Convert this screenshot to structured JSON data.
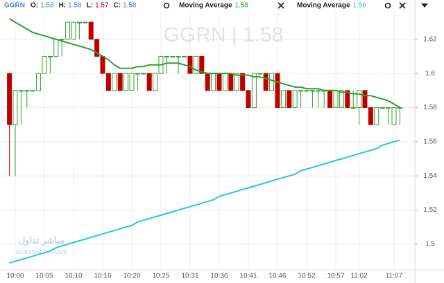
{
  "chart_data": {
    "type": "candlestick",
    "header": {
      "symbol": "GGRN",
      "fields": [
        {
          "label": "O:",
          "value": 1.58
        },
        {
          "label": "H:",
          "value": 1.58
        },
        {
          "label": "L:",
          "value": 1.57
        },
        {
          "label": "C:",
          "value": 1.58
        }
      ]
    },
    "watermark": "GGRN  |  1.58",
    "logo": [
      "مباشر تداول",
      "MUBASHER TRADE"
    ],
    "categories": [
      null,
      "10:00",
      null,
      null,
      null,
      null,
      "10:05",
      null,
      null,
      null,
      null,
      "10:10",
      null,
      null,
      null,
      null,
      "10:16",
      null,
      null,
      null,
      null,
      "10:20",
      null,
      null,
      null,
      null,
      "10:25",
      null,
      null,
      null,
      null,
      "10:31",
      null,
      null,
      null,
      null,
      "10:36",
      null,
      null,
      null,
      null,
      "10:41",
      null,
      null,
      null,
      null,
      "10:46",
      null,
      null,
      null,
      null,
      "10:52",
      null,
      null,
      null,
      null,
      "10:57",
      null,
      null,
      null,
      "11:02",
      null,
      null,
      null,
      null,
      null,
      "11:07",
      null
    ],
    "open": [
      1.6,
      1.57,
      1.59,
      1.59,
      1.59,
      1.59,
      1.6,
      1.61,
      1.61,
      1.62,
      1.62,
      1.62,
      1.63,
      1.63,
      1.63,
      1.62,
      1.61,
      1.6,
      1.59,
      1.6,
      1.59,
      1.59,
      1.6,
      1.6,
      1.6,
      1.59,
      1.6,
      1.61,
      1.61,
      1.61,
      1.61,
      1.61,
      1.6,
      1.61,
      1.6,
      1.59,
      1.6,
      1.59,
      1.6,
      1.59,
      1.6,
      1.59,
      1.58,
      1.6,
      1.6,
      1.59,
      1.6,
      1.58,
      1.59,
      1.58,
      1.59,
      1.59,
      1.59,
      1.59,
      1.59,
      1.59,
      1.58,
      1.58,
      1.59,
      1.58,
      1.58,
      1.59,
      1.58,
      1.57,
      1.58,
      1.58,
      1.57,
      1.58
    ],
    "high": [
      1.6,
      1.59,
      1.59,
      1.59,
      1.59,
      1.6,
      1.61,
      1.61,
      1.62,
      1.62,
      1.63,
      1.63,
      1.63,
      1.63,
      1.63,
      1.62,
      1.61,
      1.6,
      1.6,
      1.6,
      1.6,
      1.6,
      1.6,
      1.6,
      1.6,
      1.6,
      1.61,
      1.61,
      1.61,
      1.61,
      1.61,
      1.61,
      1.61,
      1.61,
      1.6,
      1.6,
      1.6,
      1.6,
      1.6,
      1.6,
      1.6,
      1.59,
      1.6,
      1.6,
      1.6,
      1.6,
      1.6,
      1.59,
      1.59,
      1.59,
      1.59,
      1.59,
      1.59,
      1.59,
      1.59,
      1.59,
      1.59,
      1.59,
      1.59,
      1.59,
      1.59,
      1.59,
      1.58,
      1.58,
      1.58,
      1.58,
      1.58,
      1.58
    ],
    "low": [
      1.54,
      1.54,
      1.57,
      1.58,
      1.59,
      1.59,
      1.6,
      1.6,
      1.61,
      1.61,
      1.62,
      1.62,
      1.62,
      1.63,
      1.62,
      1.61,
      1.6,
      1.59,
      1.59,
      1.59,
      1.59,
      1.59,
      1.59,
      1.6,
      1.59,
      1.59,
      1.6,
      1.6,
      1.61,
      1.6,
      1.61,
      1.6,
      1.6,
      1.6,
      1.59,
      1.59,
      1.59,
      1.59,
      1.59,
      1.59,
      1.59,
      1.58,
      1.58,
      1.6,
      1.59,
      1.59,
      1.58,
      1.58,
      1.58,
      1.58,
      1.58,
      1.59,
      1.58,
      1.58,
      1.58,
      1.58,
      1.58,
      1.58,
      1.58,
      1.58,
      1.57,
      1.58,
      1.57,
      1.57,
      1.58,
      1.57,
      1.57,
      1.57
    ],
    "close": [
      1.57,
      1.59,
      1.59,
      1.59,
      1.59,
      1.6,
      1.61,
      1.61,
      1.62,
      1.62,
      1.63,
      1.63,
      1.63,
      1.63,
      1.62,
      1.61,
      1.6,
      1.59,
      1.6,
      1.59,
      1.6,
      1.6,
      1.6,
      1.6,
      1.59,
      1.6,
      1.61,
      1.61,
      1.61,
      1.61,
      1.61,
      1.6,
      1.61,
      1.6,
      1.59,
      1.6,
      1.59,
      1.6,
      1.59,
      1.6,
      1.59,
      1.58,
      1.6,
      1.6,
      1.59,
      1.6,
      1.58,
      1.59,
      1.58,
      1.59,
      1.59,
      1.59,
      1.59,
      1.59,
      1.59,
      1.58,
      1.59,
      1.59,
      1.58,
      1.58,
      1.59,
      1.58,
      1.57,
      1.58,
      1.58,
      1.58,
      1.58,
      1.58
    ],
    "up_color": "#2ca02c",
    "down_color": "#c00000",
    "series": [
      {
        "name": "Moving Average",
        "current": 1.58,
        "color": "#2ca02c",
        "values": [
          1.632,
          1.63,
          1.628,
          1.626,
          1.624,
          1.623,
          1.622,
          1.621,
          1.62,
          1.619,
          1.618,
          1.617,
          1.616,
          1.615,
          1.614,
          1.612,
          1.61,
          1.608,
          1.605,
          1.603,
          1.603,
          1.603,
          1.604,
          1.604,
          1.605,
          1.605,
          1.605,
          1.606,
          1.606,
          1.606,
          1.605,
          1.604,
          1.602,
          1.601,
          1.6,
          1.6,
          1.6,
          1.6,
          1.6,
          1.599,
          1.599,
          1.599,
          1.598,
          1.598,
          1.597,
          1.596,
          1.595,
          1.594,
          1.593,
          1.592,
          1.592,
          1.591,
          1.591,
          1.591,
          1.59,
          1.59,
          1.59,
          1.589,
          1.589,
          1.588,
          1.588,
          1.587,
          1.587,
          1.586,
          1.585,
          1.584,
          1.582,
          1.58
        ]
      },
      {
        "name": "Moving Average",
        "current": 1.56,
        "color": "#26c6da",
        "values": [
          1.489,
          1.49,
          1.491,
          1.492,
          1.493,
          1.494,
          1.495,
          1.496,
          1.498,
          1.499,
          1.5,
          1.501,
          1.502,
          1.503,
          1.504,
          1.505,
          1.506,
          1.507,
          1.508,
          1.509,
          1.51,
          1.511,
          1.513,
          1.514,
          1.515,
          1.516,
          1.517,
          1.518,
          1.519,
          1.52,
          1.521,
          1.522,
          1.523,
          1.524,
          1.525,
          1.526,
          1.528,
          1.529,
          1.53,
          1.531,
          1.532,
          1.533,
          1.534,
          1.535,
          1.536,
          1.537,
          1.538,
          1.539,
          1.54,
          1.541,
          1.543,
          1.544,
          1.545,
          1.546,
          1.547,
          1.548,
          1.549,
          1.55,
          1.551,
          1.552,
          1.553,
          1.554,
          1.555,
          1.556,
          1.558,
          1.559,
          1.56,
          1.561
        ]
      }
    ],
    "ylim": [
      1.487,
      1.643
    ],
    "yticks": [
      1.5,
      1.52,
      1.54,
      1.56,
      1.58,
      1.6,
      1.62
    ],
    "grid": true
  }
}
